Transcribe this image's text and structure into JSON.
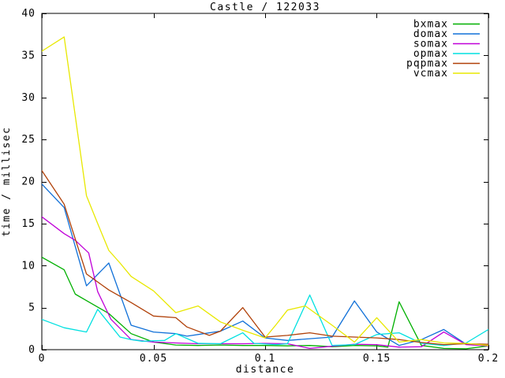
{
  "title": "Castle / 122033",
  "axes": {
    "xlabel": "distance",
    "ylabel": "time / millisec",
    "x_tick_labels": [
      "0",
      "0.05",
      "0.1",
      "0.15",
      "0.2"
    ],
    "x_tick_values": [
      0,
      0.05,
      0.1,
      0.15,
      0.2
    ],
    "y_tick_labels": [
      "0",
      "5",
      "10",
      "15",
      "20",
      "25",
      "30",
      "35",
      "40"
    ],
    "y_tick_values": [
      0,
      5,
      10,
      15,
      20,
      25,
      30,
      35,
      40
    ]
  },
  "colors": {
    "foreground": "#000000",
    "background": "#ffffff"
  },
  "chart_data": {
    "type": "line",
    "title": "Castle / 122033",
    "xlabel": "distance",
    "ylabel": "time / millisec",
    "xlim": [
      0,
      0.2
    ],
    "ylim": [
      0,
      40
    ],
    "grid": false,
    "legend_position": "top-right",
    "series": [
      {
        "name": "bxmax",
        "color": "#00b000",
        "points": [
          [
            0,
            11.0
          ],
          [
            0.01,
            9.5
          ],
          [
            0.015,
            6.6
          ],
          [
            0.03,
            4.3
          ],
          [
            0.04,
            1.9
          ],
          [
            0.05,
            0.9
          ],
          [
            0.06,
            0.55
          ],
          [
            0.07,
            0.5
          ],
          [
            0.08,
            0.55
          ],
          [
            0.09,
            0.5
          ],
          [
            0.1,
            0.5
          ],
          [
            0.11,
            0.45
          ],
          [
            0.12,
            0.5
          ],
          [
            0.13,
            0.35
          ],
          [
            0.14,
            0.5
          ],
          [
            0.15,
            0.45
          ],
          [
            0.155,
            0.3
          ],
          [
            0.16,
            5.7
          ],
          [
            0.17,
            0.5
          ],
          [
            0.18,
            0.15
          ],
          [
            0.19,
            0.1
          ],
          [
            0.2,
            0.45
          ]
        ]
      },
      {
        "name": "domax",
        "color": "#1070d8",
        "points": [
          [
            0,
            19.7
          ],
          [
            0.01,
            16.9
          ],
          [
            0.02,
            7.6
          ],
          [
            0.03,
            10.3
          ],
          [
            0.04,
            2.9
          ],
          [
            0.05,
            2.1
          ],
          [
            0.06,
            1.9
          ],
          [
            0.065,
            1.6
          ],
          [
            0.08,
            2.2
          ],
          [
            0.09,
            3.4
          ],
          [
            0.1,
            1.4
          ],
          [
            0.11,
            1.1
          ],
          [
            0.12,
            1.3
          ],
          [
            0.13,
            1.5
          ],
          [
            0.14,
            5.8
          ],
          [
            0.15,
            2.1
          ],
          [
            0.16,
            0.5
          ],
          [
            0.17,
            1.2
          ],
          [
            0.18,
            2.4
          ],
          [
            0.19,
            0.65
          ],
          [
            0.2,
            0.65
          ]
        ]
      },
      {
        "name": "somax",
        "color": "#c000d8",
        "points": [
          [
            0,
            15.8
          ],
          [
            0.01,
            13.8
          ],
          [
            0.015,
            13.0
          ],
          [
            0.021,
            11.5
          ],
          [
            0.025,
            6.9
          ],
          [
            0.031,
            3.6
          ],
          [
            0.04,
            1.2
          ],
          [
            0.05,
            0.9
          ],
          [
            0.06,
            0.8
          ],
          [
            0.07,
            0.7
          ],
          [
            0.08,
            0.7
          ],
          [
            0.09,
            0.7
          ],
          [
            0.1,
            0.75
          ],
          [
            0.11,
            0.7
          ],
          [
            0.12,
            0.15
          ],
          [
            0.13,
            0.4
          ],
          [
            0.14,
            0.65
          ],
          [
            0.15,
            0.6
          ],
          [
            0.16,
            0.3
          ],
          [
            0.17,
            0.35
          ],
          [
            0.18,
            2.1
          ],
          [
            0.19,
            0.6
          ],
          [
            0.2,
            0.45
          ]
        ]
      },
      {
        "name": "opmax",
        "color": "#00e0e0",
        "points": [
          [
            0,
            3.6
          ],
          [
            0.01,
            2.6
          ],
          [
            0.02,
            2.1
          ],
          [
            0.025,
            4.8
          ],
          [
            0.035,
            1.5
          ],
          [
            0.04,
            1.2
          ],
          [
            0.045,
            1.0
          ],
          [
            0.055,
            1.1
          ],
          [
            0.06,
            1.9
          ],
          [
            0.07,
            0.75
          ],
          [
            0.08,
            0.7
          ],
          [
            0.09,
            2.0
          ],
          [
            0.095,
            0.75
          ],
          [
            0.105,
            0.6
          ],
          [
            0.11,
            0.7
          ],
          [
            0.12,
            6.5
          ],
          [
            0.13,
            0.5
          ],
          [
            0.14,
            0.6
          ],
          [
            0.15,
            1.8
          ],
          [
            0.16,
            2.0
          ],
          [
            0.17,
            0.75
          ],
          [
            0.18,
            0.5
          ],
          [
            0.19,
            0.8
          ],
          [
            0.2,
            2.4
          ]
        ]
      },
      {
        "name": "pqpmax",
        "color": "#b04008",
        "points": [
          [
            0,
            21.3
          ],
          [
            0.01,
            17.3
          ],
          [
            0.02,
            9.0
          ],
          [
            0.03,
            7.1
          ],
          [
            0.04,
            5.6
          ],
          [
            0.05,
            4.0
          ],
          [
            0.06,
            3.8
          ],
          [
            0.065,
            2.7
          ],
          [
            0.075,
            1.7
          ],
          [
            0.08,
            2.2
          ],
          [
            0.09,
            5.0
          ],
          [
            0.1,
            1.5
          ],
          [
            0.11,
            1.7
          ],
          [
            0.12,
            2.0
          ],
          [
            0.13,
            1.6
          ],
          [
            0.14,
            1.5
          ],
          [
            0.15,
            1.4
          ],
          [
            0.16,
            1.2
          ],
          [
            0.17,
            0.85
          ],
          [
            0.18,
            0.6
          ],
          [
            0.19,
            0.7
          ],
          [
            0.2,
            0.65
          ]
        ]
      },
      {
        "name": "vcmax",
        "color": "#e8e800",
        "points": [
          [
            0,
            35.5
          ],
          [
            0.01,
            37.2
          ],
          [
            0.02,
            18.3
          ],
          [
            0.025,
            15.0
          ],
          [
            0.03,
            11.8
          ],
          [
            0.035,
            10.3
          ],
          [
            0.04,
            8.7
          ],
          [
            0.05,
            7.0
          ],
          [
            0.06,
            4.4
          ],
          [
            0.07,
            5.2
          ],
          [
            0.08,
            3.3
          ],
          [
            0.09,
            2.3
          ],
          [
            0.1,
            1.4
          ],
          [
            0.105,
            3.0
          ],
          [
            0.11,
            4.7
          ],
          [
            0.118,
            5.2
          ],
          [
            0.13,
            2.9
          ],
          [
            0.14,
            0.9
          ],
          [
            0.15,
            3.8
          ],
          [
            0.16,
            0.9
          ],
          [
            0.17,
            1.2
          ],
          [
            0.18,
            0.8
          ],
          [
            0.19,
            0.75
          ],
          [
            0.2,
            0.5
          ]
        ]
      }
    ]
  }
}
